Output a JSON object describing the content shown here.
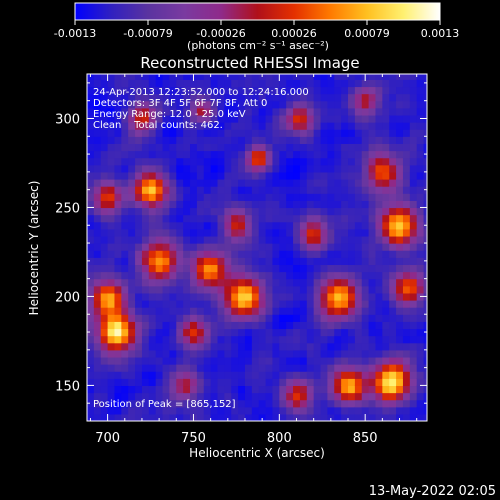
{
  "colorbar": {
    "ticks": [
      "-0.0013",
      "-0.00079",
      "-0.00026",
      "0.00026",
      "0.00079",
      "0.0013"
    ],
    "unit_label": "(photons cm⁻² s⁻¹ asec⁻²)",
    "colormap": [
      "#0000ff",
      "#3020c0",
      "#5a33a0",
      "#7a3aa0",
      "#8f2a8a",
      "#b0101a",
      "#e43000",
      "#ff7a00",
      "#ffc020",
      "#fff070",
      "#ffffff"
    ]
  },
  "plot": {
    "title": "Reconstructed RHESSI Image",
    "info_lines": [
      "24-Apr-2013 12:23:52.000 to 12:24:16.000",
      "Detectors: 3F 4F 5F 6F 7F 8F, Att 0",
      "Energy Range: 12.0 - 25.0 keV",
      "Clean    Total counts: 462."
    ],
    "peak_label": "Position of Peak = [865,152]",
    "xlabel": "Heliocentric X (arcsec)",
    "ylabel": "Heliocentric Y (arcsec)"
  },
  "footer_timestamp": "13-May-2022 02:05",
  "chart_data": {
    "type": "heatmap",
    "title": "Reconstructed RHESSI Image",
    "xlabel": "Heliocentric X (arcsec)",
    "ylabel": "Heliocentric Y (arcsec)",
    "xlim": [
      688,
      886
    ],
    "ylim": [
      130,
      325
    ],
    "x_ticks": [
      700,
      750,
      800,
      850
    ],
    "y_ticks": [
      150,
      200,
      250,
      300
    ],
    "color_range": [
      -0.0013,
      0.0013
    ],
    "peak": {
      "x": 865,
      "y": 152
    },
    "bright_sources": [
      {
        "x": 705,
        "y": 180,
        "level": 1.0,
        "spread": 8
      },
      {
        "x": 700,
        "y": 200,
        "level": 0.75,
        "spread": 7
      },
      {
        "x": 730,
        "y": 220,
        "level": 0.8,
        "spread": 8
      },
      {
        "x": 725,
        "y": 260,
        "level": 0.85,
        "spread": 7
      },
      {
        "x": 700,
        "y": 255,
        "level": 0.7,
        "spread": 6
      },
      {
        "x": 760,
        "y": 215,
        "level": 0.75,
        "spread": 7
      },
      {
        "x": 780,
        "y": 200,
        "level": 0.9,
        "spread": 8
      },
      {
        "x": 750,
        "y": 180,
        "level": 0.6,
        "spread": 6
      },
      {
        "x": 745,
        "y": 150,
        "level": 0.55,
        "spread": 6
      },
      {
        "x": 788,
        "y": 278,
        "level": 0.7,
        "spread": 5
      },
      {
        "x": 775,
        "y": 240,
        "level": 0.6,
        "spread": 6
      },
      {
        "x": 812,
        "y": 300,
        "level": 0.6,
        "spread": 6
      },
      {
        "x": 835,
        "y": 200,
        "level": 0.85,
        "spread": 8
      },
      {
        "x": 820,
        "y": 235,
        "level": 0.6,
        "spread": 6
      },
      {
        "x": 870,
        "y": 240,
        "level": 0.95,
        "spread": 8
      },
      {
        "x": 860,
        "y": 270,
        "level": 0.7,
        "spread": 7
      },
      {
        "x": 875,
        "y": 205,
        "level": 0.7,
        "spread": 7
      },
      {
        "x": 865,
        "y": 152,
        "level": 1.0,
        "spread": 8
      },
      {
        "x": 840,
        "y": 150,
        "level": 0.8,
        "spread": 7
      },
      {
        "x": 810,
        "y": 145,
        "level": 0.6,
        "spread": 6
      },
      {
        "x": 720,
        "y": 300,
        "level": 0.55,
        "spread": 6
      },
      {
        "x": 755,
        "y": 305,
        "level": 0.5,
        "spread": 5
      },
      {
        "x": 850,
        "y": 310,
        "level": 0.45,
        "spread": 6
      }
    ]
  }
}
